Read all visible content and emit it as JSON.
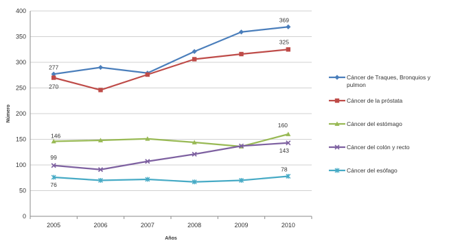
{
  "chart_data": {
    "type": "line",
    "title": "",
    "xlabel": "Años",
    "ylabel": "Número",
    "ylim": [
      0,
      400
    ],
    "yticks": [
      "0",
      "50",
      "100",
      "150",
      "200",
      "250",
      "300",
      "350",
      "400"
    ],
    "categories": [
      "2005",
      "2006",
      "2007",
      "2008",
      "2009",
      "2010"
    ],
    "grid": "horizontal",
    "legend_position": "right",
    "series": [
      {
        "name": "Cáncer de Traques, Bronquios y pulmon",
        "color": "#4a7ebb",
        "marker": "diamond",
        "values": [
          277,
          290,
          279,
          321,
          359,
          369
        ]
      },
      {
        "name": "Cáncer de la próstata",
        "color": "#be4b48",
        "marker": "square",
        "values": [
          270,
          246,
          276,
          306,
          316,
          325
        ]
      },
      {
        "name": "Cáncer del estómago",
        "color": "#98b954",
        "marker": "triangle",
        "values": [
          146,
          148,
          151,
          144,
          136,
          160
        ]
      },
      {
        "name": "Cáncer del colón y recto",
        "color": "#7d60a0",
        "marker": "x",
        "values": [
          99,
          91,
          107,
          121,
          137,
          143
        ]
      },
      {
        "name": "Cáncer  del esófago",
        "color": "#46aac5",
        "marker": "star",
        "values": [
          76,
          70,
          72,
          67,
          70,
          78
        ]
      }
    ],
    "data_labels": [
      {
        "series": 0,
        "index": 0,
        "text": "277"
      },
      {
        "series": 0,
        "index": 5,
        "text": "369"
      },
      {
        "series": 1,
        "index": 0,
        "text": "270"
      },
      {
        "series": 1,
        "index": 5,
        "text": "325"
      },
      {
        "series": 2,
        "index": 0,
        "text": "146"
      },
      {
        "series": 2,
        "index": 5,
        "text": "160"
      },
      {
        "series": 3,
        "index": 0,
        "text": "99"
      },
      {
        "series": 3,
        "index": 5,
        "text": "143"
      },
      {
        "series": 4,
        "index": 0,
        "text": "76"
      },
      {
        "series": 4,
        "index": 5,
        "text": "78"
      }
    ]
  }
}
